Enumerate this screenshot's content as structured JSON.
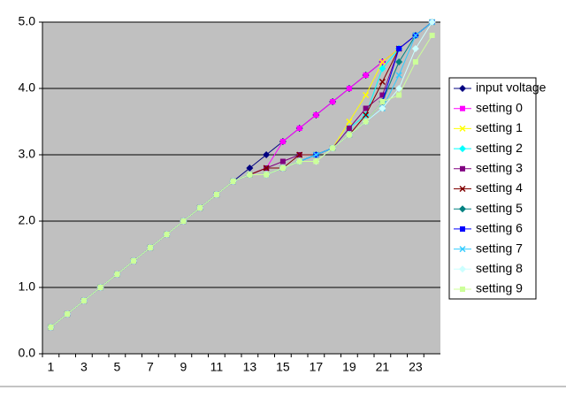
{
  "chart_data": {
    "type": "line",
    "categories": [
      1,
      null,
      3,
      null,
      5,
      null,
      7,
      null,
      9,
      null,
      11,
      null,
      13,
      null,
      15,
      null,
      17,
      null,
      19,
      null,
      21,
      null,
      23,
      null
    ],
    "ylim": [
      0,
      5
    ],
    "yticks": [
      {
        "value": 0,
        "label": "0.0"
      },
      {
        "value": 1,
        "label": "1.0"
      },
      {
        "value": 2,
        "label": "2.0"
      },
      {
        "value": 3,
        "label": "3.0"
      },
      {
        "value": 4,
        "label": "4.0"
      },
      {
        "value": 5,
        "label": "5.0"
      }
    ],
    "grid": true,
    "legend": "right",
    "series": [
      {
        "name": "input voltage",
        "color": "#000080",
        "values": [
          0.4,
          0.6,
          0.8,
          1.0,
          1.2,
          1.4,
          1.6,
          1.8,
          2.0,
          2.2,
          2.4,
          2.6,
          2.8,
          3.0,
          3.2,
          3.4,
          3.6,
          3.8,
          4.0,
          4.2,
          4.4,
          4.6,
          4.8,
          5.0
        ]
      },
      {
        "name": "setting 0",
        "color": "#ff00ff",
        "values": [
          0.4,
          0.6,
          0.8,
          1.0,
          1.2,
          1.4,
          1.6,
          1.8,
          2.0,
          2.2,
          2.4,
          2.6,
          2.7,
          2.8,
          3.2,
          3.4,
          3.6,
          3.8,
          4.0,
          4.2,
          4.4,
          4.6,
          4.8,
          5.0
        ]
      },
      {
        "name": "setting 1",
        "color": "#ffff00",
        "values": [
          0.4,
          0.6,
          0.8,
          1.0,
          1.2,
          1.4,
          1.6,
          1.8,
          2.0,
          2.2,
          2.4,
          2.6,
          2.7,
          2.7,
          2.8,
          2.9,
          3.0,
          3.1,
          3.5,
          3.9,
          4.4,
          4.6,
          4.8,
          5.0
        ]
      },
      {
        "name": "setting 2",
        "color": "#00ffff",
        "values": [
          0.4,
          0.6,
          0.8,
          1.0,
          1.2,
          1.4,
          1.6,
          1.8,
          2.0,
          2.2,
          2.4,
          2.6,
          2.7,
          2.7,
          2.8,
          2.9,
          3.0,
          3.1,
          3.4,
          3.6,
          4.3,
          4.6,
          4.8,
          5.0
        ]
      },
      {
        "name": "setting 3",
        "color": "#800080",
        "values": [
          0.4,
          0.6,
          0.8,
          1.0,
          1.2,
          1.4,
          1.6,
          1.8,
          2.0,
          2.2,
          2.4,
          2.6,
          2.7,
          2.8,
          2.9,
          3.0,
          3.0,
          3.1,
          3.4,
          3.7,
          3.9,
          4.6,
          4.8,
          5.0
        ]
      },
      {
        "name": "setting 4",
        "color": "#800000",
        "values": [
          0.4,
          0.6,
          0.8,
          1.0,
          1.2,
          1.4,
          1.6,
          1.8,
          2.0,
          2.2,
          2.4,
          2.6,
          2.7,
          2.8,
          2.8,
          3.0,
          3.0,
          3.1,
          3.3,
          3.6,
          4.1,
          4.6,
          4.8,
          5.0
        ]
      },
      {
        "name": "setting 5",
        "color": "#008080",
        "values": [
          0.4,
          0.6,
          0.8,
          1.0,
          1.2,
          1.4,
          1.6,
          1.8,
          2.0,
          2.2,
          2.4,
          2.6,
          2.7,
          2.7,
          2.8,
          2.9,
          3.0,
          3.1,
          3.3,
          3.5,
          3.8,
          4.4,
          4.8,
          5.0
        ]
      },
      {
        "name": "setting 6",
        "color": "#0000ff",
        "values": [
          0.4,
          0.6,
          0.8,
          1.0,
          1.2,
          1.4,
          1.6,
          1.8,
          2.0,
          2.2,
          2.4,
          2.6,
          2.7,
          2.7,
          2.8,
          2.9,
          3.0,
          3.1,
          3.3,
          3.5,
          3.8,
          4.6,
          4.8,
          5.0
        ]
      },
      {
        "name": "setting 7",
        "color": "#33ccff",
        "values": [
          0.4,
          0.6,
          0.8,
          1.0,
          1.2,
          1.4,
          1.6,
          1.8,
          2.0,
          2.2,
          2.4,
          2.6,
          2.7,
          2.7,
          2.8,
          2.9,
          3.0,
          3.1,
          3.3,
          3.5,
          3.7,
          4.2,
          4.8,
          5.0
        ]
      },
      {
        "name": "setting 8",
        "color": "#ccffff",
        "values": [
          0.4,
          0.6,
          0.8,
          1.0,
          1.2,
          1.4,
          1.6,
          1.8,
          2.0,
          2.2,
          2.4,
          2.6,
          2.7,
          2.7,
          2.8,
          2.9,
          2.9,
          3.1,
          3.3,
          3.5,
          3.7,
          4.0,
          4.6,
          5.0
        ]
      },
      {
        "name": "setting 9",
        "color": "#ccff99",
        "values": [
          0.4,
          0.6,
          0.8,
          1.0,
          1.2,
          1.4,
          1.6,
          1.8,
          2.0,
          2.2,
          2.4,
          2.6,
          2.7,
          2.7,
          2.8,
          2.9,
          2.9,
          3.1,
          3.3,
          3.5,
          3.8,
          3.9,
          4.4,
          4.8
        ]
      }
    ]
  }
}
